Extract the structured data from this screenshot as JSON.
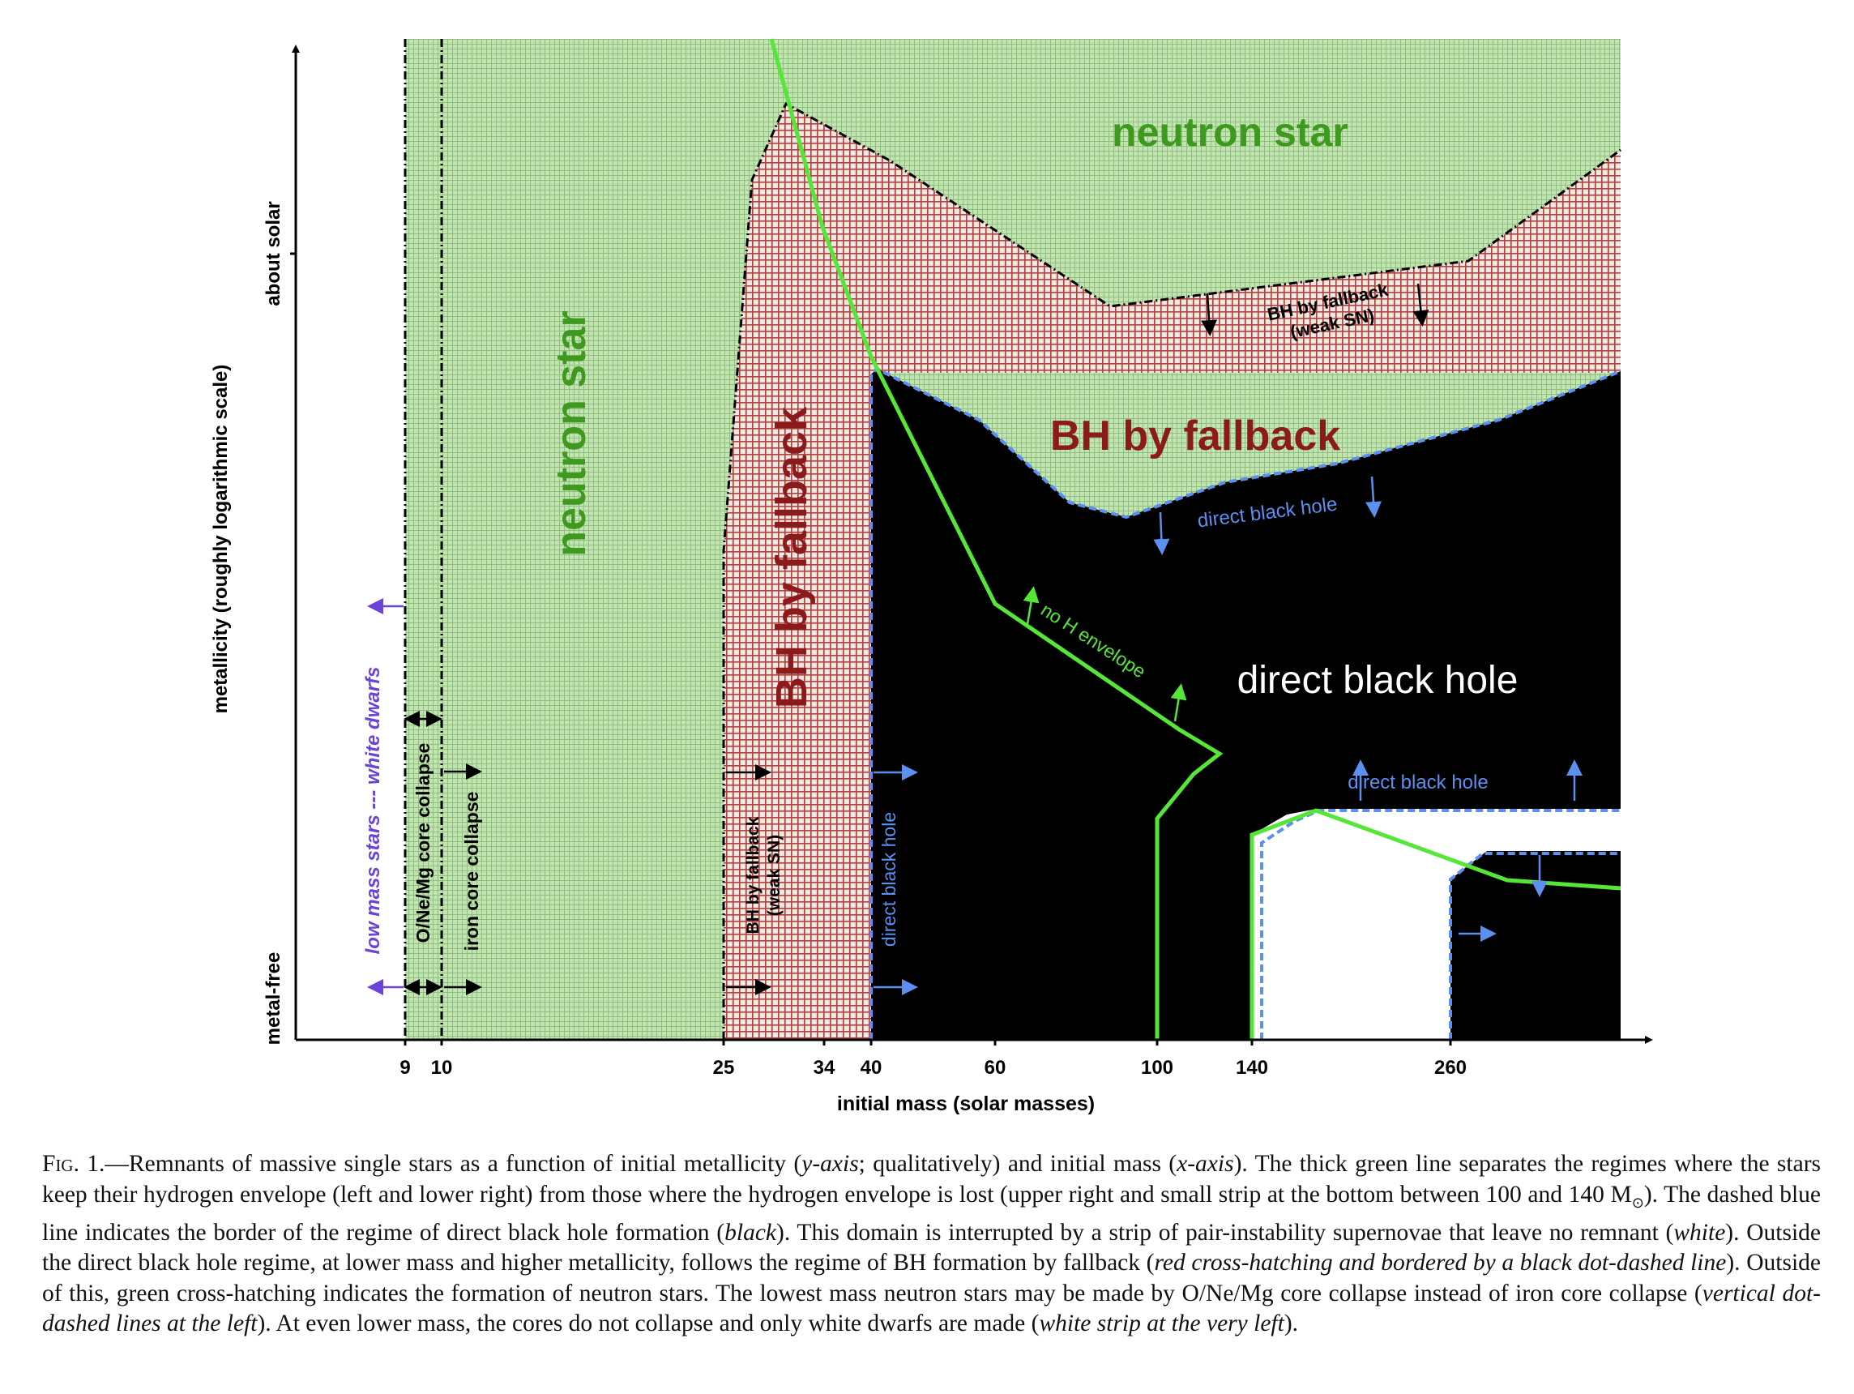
{
  "figure": {
    "y_axis_label": "metallicity (roughly logarithmic scale)",
    "x_axis_label": "initial mass (solar masses)",
    "y_ticks": [
      "about solar",
      "metal-free"
    ],
    "x_ticks": [
      "9",
      "10",
      "25",
      "34",
      "40",
      "60",
      "100",
      "140",
      "260"
    ],
    "regions": {
      "neutron_star_top": "neutron star",
      "neutron_star_left": "neutron star",
      "bh_fallback_vertical": "BH by fallback",
      "bh_fallback_main": "BH by fallback",
      "direct_black_hole_main": "direct black hole",
      "bh_fallback_weak_top": [
        "BH by fallback",
        "(weak SN)"
      ],
      "direct_bh_boundary_label": "direct black hole",
      "direct_bh_white_label": "direct black hole",
      "no_h_envelope": "no H envelope",
      "low_mass_stars": "low mass stars --- white dwarfs",
      "onemg_collapse": "O/Ne/Mg core collapse",
      "iron_collapse": "iron core collapse",
      "bh_fallback_weak_bottom": [
        "BH by fallback",
        "(weak SN)"
      ],
      "direct_bh_bottom": "direct black hole"
    },
    "colors": {
      "neutron_star_fill": "#b5d6a4",
      "bh_fallback_fill": "#b45a55",
      "direct_bh_fill": "#000000",
      "no_remnant_fill": "#ffffff",
      "envelope_line": "#55e637",
      "boundary_blue": "#5b8ff0",
      "neutron_text": "#3d9a1f",
      "fallback_text": "#8b1a1a",
      "white_dwarf_text": "#6a44d6"
    }
  },
  "caption": {
    "fig_label": "Fig. 1.",
    "parts": [
      {
        "t": "—Remnants of massive single stars as a function of initial metallicity (",
        "i": false
      },
      {
        "t": "y-axis",
        "i": true
      },
      {
        "t": "; qualitatively) and initial mass (",
        "i": false
      },
      {
        "t": "x-axis",
        "i": true
      },
      {
        "t": "). The thick green line separates the regimes where the stars keep their hydrogen envelope (left and lower right) from those where the hydrogen envelope is lost (upper right and small strip at the bottom between 100 and 140 M",
        "i": false
      },
      {
        "t": "⊙",
        "i": false
      },
      {
        "t": "). The dashed blue line indicates the border of the regime of direct black hole formation (",
        "i": false
      },
      {
        "t": "black",
        "i": true
      },
      {
        "t": "). This domain is interrupted by a strip of pair-instability supernovae that leave no remnant (",
        "i": false
      },
      {
        "t": "white",
        "i": true
      },
      {
        "t": "). Outside the direct black hole regime, at lower mass and higher metallicity, follows the regime of BH formation by fallback (",
        "i": false
      },
      {
        "t": "red cross-hatching and bordered by a black dot-dashed line",
        "i": true
      },
      {
        "t": "). Outside of this, green cross-hatching indicates the formation of neutron stars. The lowest mass neutron stars may be made by O/Ne/Mg core collapse instead of iron core collapse (",
        "i": false
      },
      {
        "t": "vertical dot-dashed lines at the left",
        "i": true
      },
      {
        "t": "). At even lower mass, the cores do not collapse and only white dwarfs are made (",
        "i": false
      },
      {
        "t": "white strip at the very left",
        "i": true
      },
      {
        "t": ").",
        "i": false
      }
    ]
  }
}
